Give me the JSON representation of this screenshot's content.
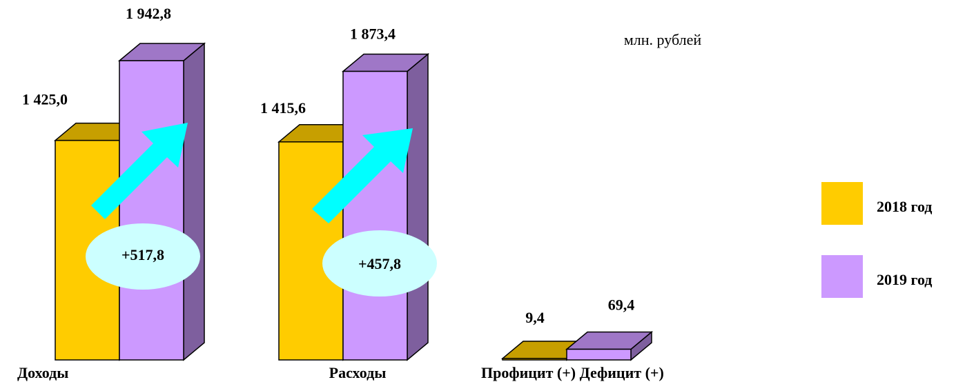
{
  "chart_data": {
    "type": "bar3d",
    "unit_note": "млн. рублей",
    "categories": [
      "Доходы",
      "Расходы",
      "Профицит (+)  Дефицит (+)"
    ],
    "series": [
      {
        "name": "2018 год",
        "color": "#FFCC00",
        "values": [
          1425.0,
          1415.6,
          9.4
        ],
        "value_labels": [
          "1 425,0",
          "1 415,6",
          "9,4"
        ]
      },
      {
        "name": "2019 год",
        "color": "#CC99FF",
        "values": [
          1942.8,
          1873.4,
          69.4
        ],
        "value_labels": [
          "1 942,8",
          "1 873,4",
          "69,4"
        ]
      }
    ],
    "annotations": [
      "+517,8",
      "+457,8"
    ],
    "legend": "right"
  }
}
